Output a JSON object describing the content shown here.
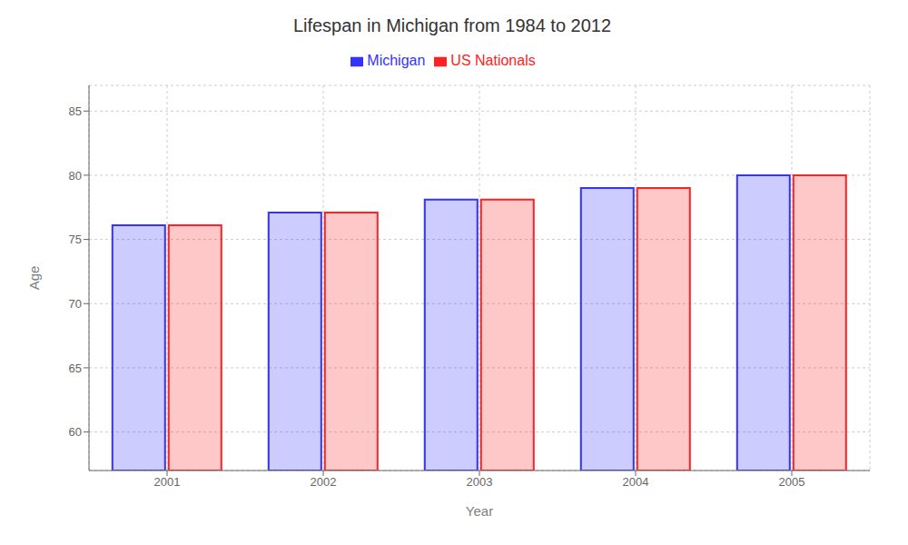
{
  "chart_data": {
    "type": "bar",
    "title": "Lifespan in Michigan from 1984 to 2012",
    "x_label": "Year",
    "y_label": "Age",
    "categories": [
      "2001",
      "2002",
      "2003",
      "2004",
      "2005"
    ],
    "series": [
      {
        "name": "Michigan",
        "color": "#3333ff",
        "values": [
          76.1,
          77.1,
          78.1,
          79.0,
          80.0
        ]
      },
      {
        "name": "US Nationals",
        "color": "#ff2222",
        "values": [
          76.1,
          77.1,
          78.1,
          79.0,
          80.0
        ]
      }
    ],
    "ylim": [
      57,
      87
    ],
    "yticks": [
      60,
      65,
      70,
      75,
      80,
      85
    ],
    "grid": true,
    "legend": "top"
  }
}
